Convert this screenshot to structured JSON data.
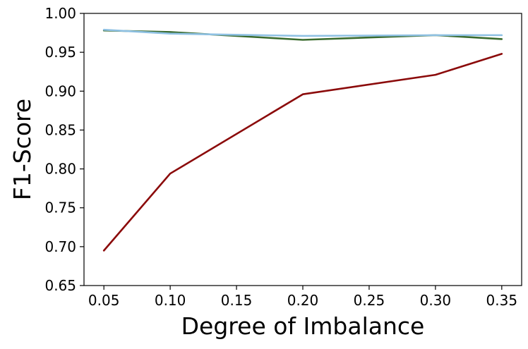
{
  "chart_data": {
    "type": "line",
    "title": "",
    "xlabel": "Degree of Imbalance",
    "ylabel": "F1-Score",
    "xlim": [
      0.035,
      0.365
    ],
    "ylim": [
      0.65,
      1.0
    ],
    "x_ticks": [
      "0.05",
      "0.10",
      "0.15",
      "0.20",
      "0.25",
      "0.30",
      "0.35"
    ],
    "y_ticks": [
      "0.65",
      "0.70",
      "0.75",
      "0.80",
      "0.85",
      "0.90",
      "0.95",
      "1.00"
    ],
    "grid": false,
    "legend": "none",
    "x": [
      0.05,
      0.1,
      0.2,
      0.3,
      0.35
    ],
    "series": [
      {
        "color": "#8b0a0a",
        "values": [
          0.695,
          0.794,
          0.896,
          0.921,
          0.948
        ]
      },
      {
        "color": "#3a6b2e",
        "values": [
          0.978,
          0.976,
          0.966,
          0.972,
          0.967
        ]
      },
      {
        "color": "#8fc1e3",
        "values": [
          0.979,
          0.974,
          0.971,
          0.972,
          0.972
        ]
      }
    ]
  }
}
